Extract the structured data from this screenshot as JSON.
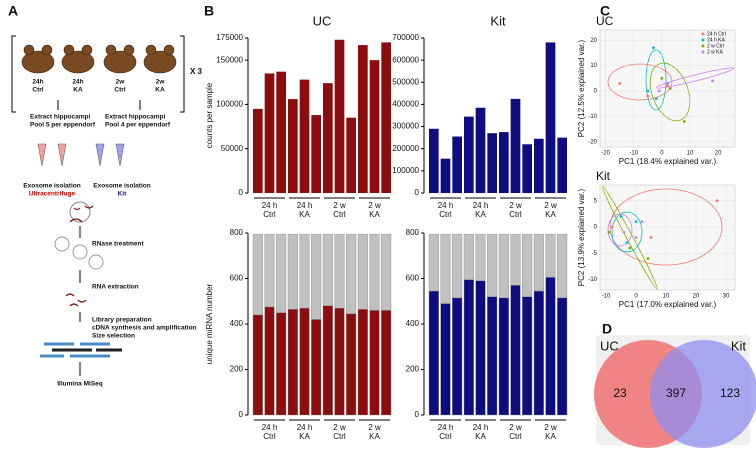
{
  "panel_labels": [
    "A",
    "B",
    "C",
    "D"
  ],
  "workflow": {
    "groups": [
      [
        "24h",
        "Ctrl"
      ],
      [
        "24h",
        "KA"
      ],
      [
        "2w",
        "Ctrl"
      ],
      [
        "2w",
        "KA"
      ]
    ],
    "replicates": "X 3",
    "extract": [
      [
        "Extract hippocampi",
        "Pool 5 per eppendorf"
      ],
      [
        "Extract hippocampi",
        "Pool 4 per eppendorf"
      ]
    ],
    "isolation": [
      [
        "Exosome isolation",
        "Ultracentrifuge"
      ],
      [
        "Exosome isolation",
        "Kit"
      ]
    ],
    "steps": [
      "RNase treatment",
      "RNA extraction"
    ],
    "library": [
      "Library preparation",
      "cDNA synthesis and amplification",
      "Size selection"
    ],
    "sequencing": "Illumina MiSeq"
  },
  "chart_data": [
    {
      "type": "bar",
      "title": "UC",
      "ylabel": "counts per sample",
      "color": "#8b0d0d",
      "groups": [
        [
          "24 h",
          "Ctrl"
        ],
        [
          "24 h",
          "KA"
        ],
        [
          "2 w",
          "Ctrl"
        ],
        [
          "2 w",
          "KA"
        ]
      ],
      "values": [
        95000,
        135000,
        137000,
        106000,
        128000,
        88000,
        124000,
        173000,
        85000,
        167000,
        150000,
        170000
      ],
      "ylim": [
        0,
        175000
      ],
      "yticks": [
        0,
        50000,
        100000,
        150000,
        175000
      ]
    },
    {
      "type": "bar",
      "title": "Kit",
      "color": "#0d0d80",
      "groups": [
        [
          "24 h",
          "Ctrl"
        ],
        [
          "24 h",
          "KA"
        ],
        [
          "2 w",
          "Ctrl"
        ],
        [
          "2 w",
          "KA"
        ]
      ],
      "values": [
        290000,
        155000,
        255000,
        345000,
        385000,
        270000,
        275000,
        425000,
        220000,
        245000,
        680000,
        250000
      ],
      "ylim": [
        0,
        700000
      ],
      "yticks": [
        0,
        100000,
        200000,
        300000,
        400000,
        500000,
        600000,
        700000
      ]
    },
    {
      "type": "stacked_bar",
      "ylabel": "unique miRNA number",
      "groups": [
        [
          "24 h",
          "Ctrl"
        ],
        [
          "24 h",
          "KA"
        ],
        [
          "2 w",
          "Ctrl"
        ],
        [
          "2 w",
          "KA"
        ]
      ],
      "series": [
        {
          "color": "#8b0d0d",
          "values": [
            440,
            475,
            450,
            465,
            470,
            420,
            480,
            470,
            445,
            465,
            460,
            460
          ]
        },
        {
          "color": "#c0c0c0",
          "values": [
            355,
            320,
            345,
            330,
            325,
            375,
            315,
            325,
            350,
            330,
            335,
            335
          ]
        }
      ],
      "ylim": [
        0,
        800
      ],
      "yticks": [
        0,
        200,
        400,
        600,
        800
      ]
    },
    {
      "type": "stacked_bar",
      "groups": [
        [
          "24 h",
          "Ctrl"
        ],
        [
          "24 h",
          "KA"
        ],
        [
          "2 w",
          "Ctrl"
        ],
        [
          "2 w",
          "KA"
        ]
      ],
      "series": [
        {
          "color": "#0d0d80",
          "values": [
            545,
            490,
            515,
            595,
            590,
            520,
            515,
            570,
            520,
            545,
            605,
            515
          ]
        },
        {
          "color": "#c0c0c0",
          "values": [
            250,
            305,
            280,
            200,
            205,
            275,
            280,
            225,
            275,
            250,
            190,
            280
          ]
        }
      ],
      "ylim": [
        0,
        800
      ],
      "yticks": [
        0,
        200,
        400,
        600,
        800
      ]
    },
    {
      "type": "scatter",
      "title": "UC",
      "xlabel": "PC1 (18.4% explained var.)",
      "ylabel": "PC2 (12.5% explained var.)",
      "legend": true,
      "xlim": [
        -22,
        26
      ],
      "ylim": [
        -22,
        24
      ],
      "xticks": [
        -20,
        -10,
        0,
        10,
        20
      ],
      "yticks": [
        -20,
        -10,
        0,
        10,
        20
      ],
      "series": [
        {
          "name": "24 h Ctrl",
          "color": "#f8766d",
          "x": [
            -15,
            -5,
            2
          ],
          "y": [
            3,
            -2,
            2
          ]
        },
        {
          "name": "24 h KA",
          "color": "#00bfc4",
          "x": [
            -3,
            -5,
            -2
          ],
          "y": [
            17,
            0,
            -3
          ]
        },
        {
          "name": "2 w Ctrl",
          "color": "#7cae00",
          "x": [
            0,
            8,
            3
          ],
          "y": [
            5,
            -12,
            1
          ]
        },
        {
          "name": "2 w KA",
          "color": "#c77cff",
          "x": [
            -1,
            18,
            2
          ],
          "y": [
            0,
            4,
            3
          ]
        }
      ]
    },
    {
      "type": "scatter",
      "title": "Kit",
      "xlabel": "PC1 (17.0% explained var.)",
      "ylabel": "PC2 (13.9% explained var.)",
      "xlim": [
        -12,
        33
      ],
      "ylim": [
        -12,
        8
      ],
      "xticks": [
        -10,
        0,
        10,
        20,
        30
      ],
      "yticks": [
        -10,
        -5,
        0,
        5
      ],
      "series": [
        {
          "color": "#f8766d",
          "x": [
            -8,
            5,
            27
          ],
          "y": [
            0,
            -2,
            5
          ]
        },
        {
          "color": "#00bfc4",
          "x": [
            -5,
            -3,
            0
          ],
          "y": [
            2,
            -3,
            1
          ]
        },
        {
          "color": "#7cae00",
          "x": [
            -9,
            -2,
            4
          ],
          "y": [
            -1,
            -4,
            -6
          ]
        },
        {
          "color": "#c77cff",
          "x": [
            -4,
            2,
            0
          ],
          "y": [
            -1,
            1,
            -2
          ]
        }
      ]
    },
    {
      "type": "venn",
      "sets": [
        "UC",
        "Kit"
      ],
      "colors": [
        "#f07070",
        "#8f8ff0"
      ],
      "values": [
        23,
        397,
        123
      ]
    }
  ]
}
